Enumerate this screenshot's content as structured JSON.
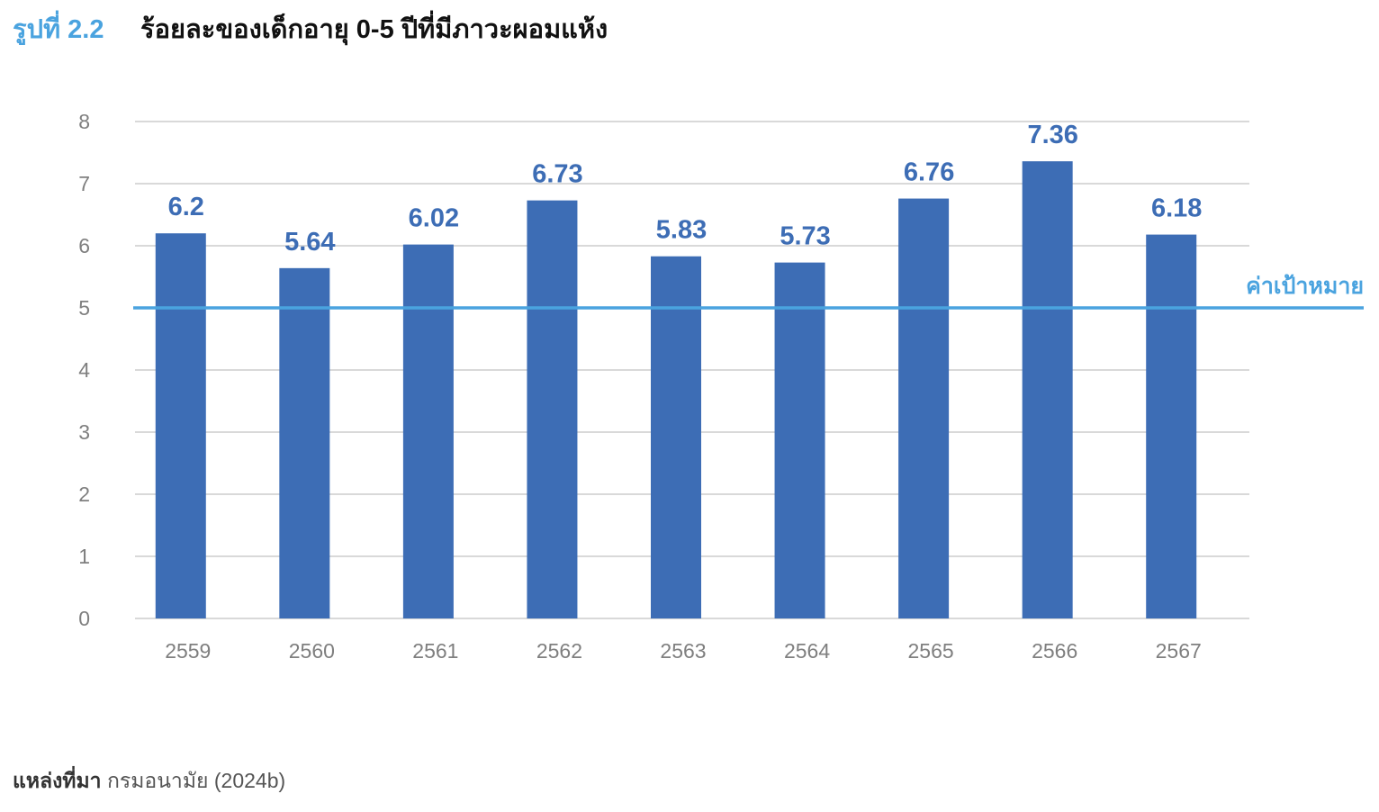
{
  "figure": {
    "number": "รูปที่ 2.2",
    "title": "ร้อยละของเด็กอายุ 0-5 ปีที่มีภาวะผอมแห้ง"
  },
  "source": {
    "label": "แหล่งที่มา",
    "text": "กรมอนามัย (2024b)"
  },
  "chart_data": {
    "type": "bar",
    "title": "",
    "xlabel": "",
    "ylabel": "",
    "categories": [
      "2559",
      "2560",
      "2561",
      "2562",
      "2563",
      "2564",
      "2565",
      "2566",
      "2567"
    ],
    "values": [
      6.2,
      5.64,
      6.02,
      6.73,
      5.83,
      5.73,
      6.76,
      7.36,
      6.18
    ],
    "data_labels": [
      "6.2",
      "5.64",
      "6.02",
      "6.73",
      "5.83",
      "5.73",
      "6.76",
      "7.36",
      "6.18"
    ],
    "ylim": [
      0,
      8
    ],
    "yticks": [
      0,
      1,
      2,
      3,
      4,
      5,
      6,
      7,
      8
    ],
    "grid": true,
    "legend": "none",
    "target": {
      "value": 5,
      "label": "ค่าเป้าหมาย"
    },
    "colors": {
      "bar": "#3d6db5",
      "target_line": "#4aa3df",
      "grid": "#d9d9d9",
      "axis_text": "#7f7f7f"
    }
  }
}
